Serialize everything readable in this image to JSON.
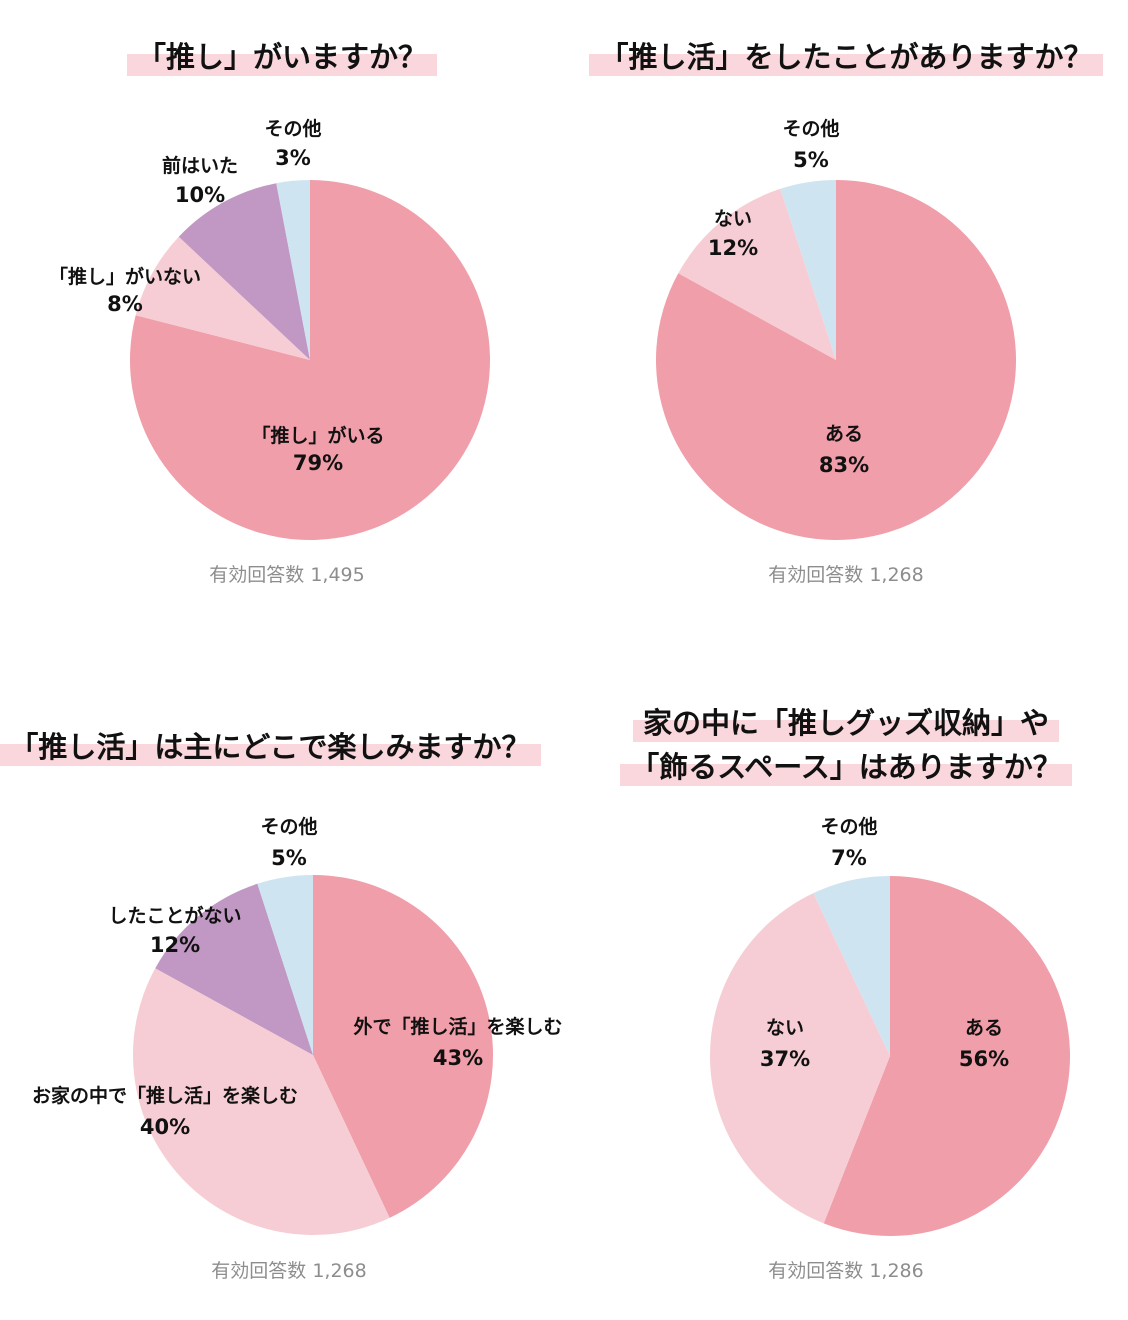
{
  "chart_data": [
    {
      "type": "pie",
      "title": [
        "「推し」がいますか？"
      ],
      "note": "有効回答数 1,495",
      "slices": [
        {
          "label": "「推し」がいる",
          "value": 79,
          "value_label": "79%",
          "color": "#f09ea9"
        },
        {
          "label": "「推し」がいない",
          "value": 8,
          "value_label": "8%",
          "color": "#f6cdd4"
        },
        {
          "label": "前はいた",
          "value": 10,
          "value_label": "10%",
          "color": "#c098c3"
        },
        {
          "label": "その他",
          "value": 3,
          "value_label": "3%",
          "color": "#cfe4f1"
        }
      ]
    },
    {
      "type": "pie",
      "title": [
        "「推し活」をしたことがありますか？"
      ],
      "note": "有効回答数 1,268",
      "slices": [
        {
          "label": "ある",
          "value": 83,
          "value_label": "83%",
          "color": "#f09ea9"
        },
        {
          "label": "ない",
          "value": 12,
          "value_label": "12%",
          "color": "#f6cdd4"
        },
        {
          "label": "その他",
          "value": 5,
          "value_label": "5%",
          "color": "#cfe4f1"
        }
      ]
    },
    {
      "type": "pie",
      "title": [
        "「推し活」は主にどこで楽しみますか？"
      ],
      "note": "有効回答数 1,268",
      "slices": [
        {
          "label": "外で「推し活」を楽しむ",
          "value": 43,
          "value_label": "43%",
          "color": "#f09ea9"
        },
        {
          "label": "お家の中で「推し活」を楽しむ",
          "value": 40,
          "value_label": "40%",
          "color": "#f6cdd4"
        },
        {
          "label": "したことがない",
          "value": 12,
          "value_label": "12%",
          "color": "#c098c3"
        },
        {
          "label": "その他",
          "value": 5,
          "value_label": "5%",
          "color": "#cfe4f1"
        }
      ]
    },
    {
      "type": "pie",
      "title": [
        "家の中に「推しグッズ収納」や",
        "「飾るスペース」はありますか？"
      ],
      "note": "有効回答数 1,286",
      "slices": [
        {
          "label": "ある",
          "value": 56,
          "value_label": "56%",
          "color": "#f09ea9"
        },
        {
          "label": "ない",
          "value": 37,
          "value_label": "37%",
          "color": "#f6cdd4"
        },
        {
          "label": "その他",
          "value": 7,
          "value_label": "7%",
          "color": "#cfe4f1"
        }
      ]
    }
  ]
}
